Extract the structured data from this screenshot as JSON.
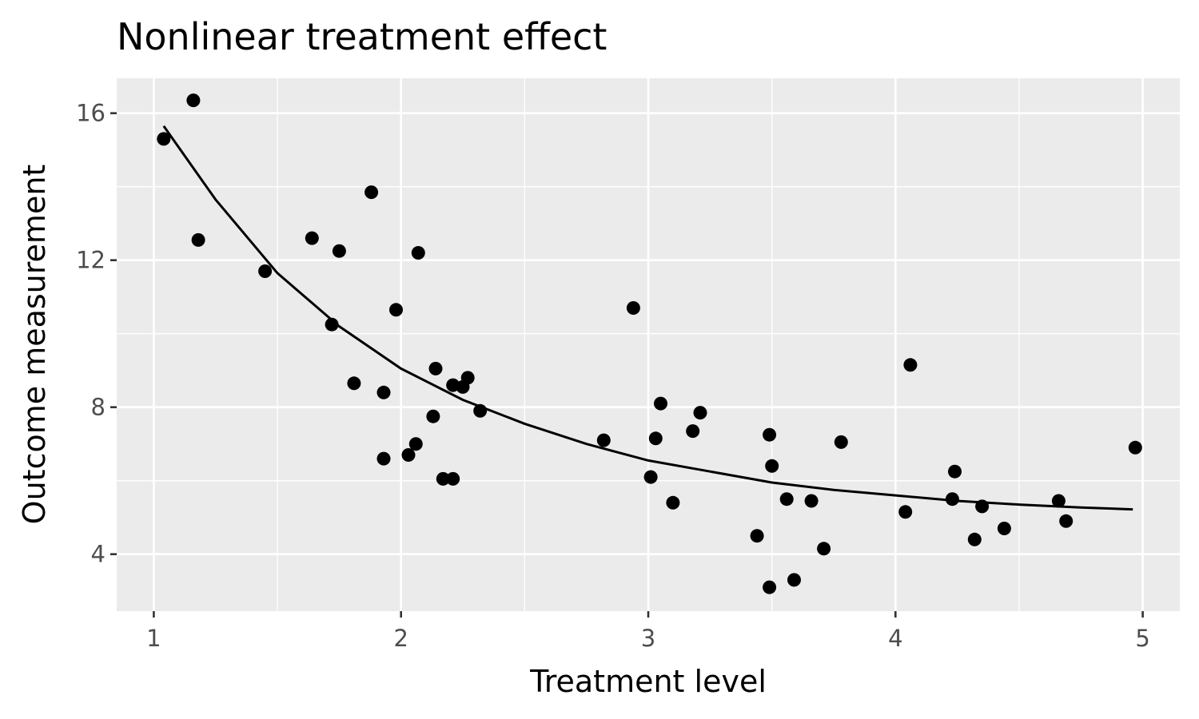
{
  "chart_data": {
    "type": "scatter",
    "title": "Nonlinear treatment effect",
    "xlabel": "Treatment level",
    "ylabel": "Outcome measurement",
    "xlim": [
      0.85,
      5.15
    ],
    "ylim": [
      2.45,
      16.95
    ],
    "x_ticks": [
      1,
      2,
      3,
      4,
      5
    ],
    "x_tick_labels": [
      "1",
      "2",
      "3",
      "4",
      "5"
    ],
    "y_ticks": [
      4,
      8,
      12,
      16
    ],
    "y_tick_labels": [
      "4",
      "8",
      "12",
      "16"
    ],
    "grid": true,
    "legend": "none",
    "colors": {
      "panel": "#ebebeb",
      "grid": "#ffffff",
      "points": "#000000",
      "line": "#000000"
    },
    "series": [
      {
        "type": "scatter",
        "points": [
          {
            "x": 1.04,
            "y": 15.3
          },
          {
            "x": 1.16,
            "y": 16.35
          },
          {
            "x": 1.18,
            "y": 12.55
          },
          {
            "x": 1.45,
            "y": 11.7
          },
          {
            "x": 1.64,
            "y": 12.6
          },
          {
            "x": 1.72,
            "y": 10.25
          },
          {
            "x": 1.75,
            "y": 12.25
          },
          {
            "x": 1.81,
            "y": 8.65
          },
          {
            "x": 1.88,
            "y": 13.85
          },
          {
            "x": 1.93,
            "y": 8.4
          },
          {
            "x": 1.93,
            "y": 6.6
          },
          {
            "x": 1.98,
            "y": 10.65
          },
          {
            "x": 2.03,
            "y": 6.7
          },
          {
            "x": 2.06,
            "y": 7.0
          },
          {
            "x": 2.07,
            "y": 12.2
          },
          {
            "x": 2.13,
            "y": 7.75
          },
          {
            "x": 2.14,
            "y": 9.05
          },
          {
            "x": 2.17,
            "y": 6.05
          },
          {
            "x": 2.21,
            "y": 6.05
          },
          {
            "x": 2.21,
            "y": 8.6
          },
          {
            "x": 2.25,
            "y": 8.55
          },
          {
            "x": 2.27,
            "y": 8.8
          },
          {
            "x": 2.32,
            "y": 7.9
          },
          {
            "x": 2.82,
            "y": 7.1
          },
          {
            "x": 2.94,
            "y": 10.7
          },
          {
            "x": 3.01,
            "y": 6.1
          },
          {
            "x": 3.03,
            "y": 7.15
          },
          {
            "x": 3.05,
            "y": 8.1
          },
          {
            "x": 3.1,
            "y": 5.4
          },
          {
            "x": 3.18,
            "y": 7.35
          },
          {
            "x": 3.21,
            "y": 7.85
          },
          {
            "x": 3.44,
            "y": 4.5
          },
          {
            "x": 3.49,
            "y": 7.25
          },
          {
            "x": 3.49,
            "y": 3.1
          },
          {
            "x": 3.5,
            "y": 6.4
          },
          {
            "x": 3.56,
            "y": 5.5
          },
          {
            "x": 3.59,
            "y": 3.3
          },
          {
            "x": 3.66,
            "y": 5.45
          },
          {
            "x": 3.71,
            "y": 4.15
          },
          {
            "x": 3.78,
            "y": 7.05
          },
          {
            "x": 4.04,
            "y": 5.15
          },
          {
            "x": 4.06,
            "y": 9.15
          },
          {
            "x": 4.23,
            "y": 5.5
          },
          {
            "x": 4.24,
            "y": 6.25
          },
          {
            "x": 4.32,
            "y": 4.4
          },
          {
            "x": 4.35,
            "y": 5.3
          },
          {
            "x": 4.44,
            "y": 4.7
          },
          {
            "x": 4.66,
            "y": 5.45
          },
          {
            "x": 4.69,
            "y": 4.9
          },
          {
            "x": 4.97,
            "y": 6.9
          }
        ]
      },
      {
        "type": "line",
        "points": [
          {
            "x": 1.04,
            "y": 15.65
          },
          {
            "x": 1.25,
            "y": 13.65
          },
          {
            "x": 1.5,
            "y": 11.65
          },
          {
            "x": 1.75,
            "y": 10.2
          },
          {
            "x": 2.0,
            "y": 9.05
          },
          {
            "x": 2.25,
            "y": 8.2
          },
          {
            "x": 2.5,
            "y": 7.55
          },
          {
            "x": 2.75,
            "y": 7.0
          },
          {
            "x": 3.0,
            "y": 6.55
          },
          {
            "x": 3.25,
            "y": 6.25
          },
          {
            "x": 3.5,
            "y": 5.95
          },
          {
            "x": 3.75,
            "y": 5.75
          },
          {
            "x": 4.0,
            "y": 5.6
          },
          {
            "x": 4.25,
            "y": 5.45
          },
          {
            "x": 4.5,
            "y": 5.35
          },
          {
            "x": 4.75,
            "y": 5.27
          },
          {
            "x": 4.96,
            "y": 5.22
          }
        ]
      }
    ]
  }
}
